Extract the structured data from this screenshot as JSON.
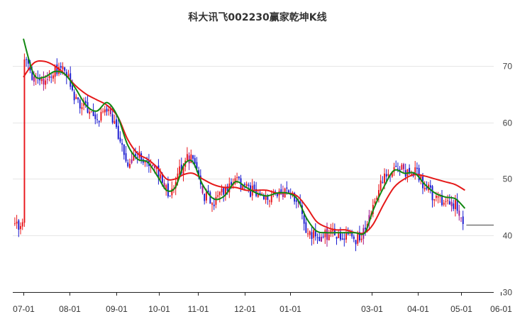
{
  "chart_data": {
    "type": "candlestick",
    "title": "科大讯飞002230赢家乾坤K线",
    "xlabel": "",
    "ylabel": "",
    "ylim": [
      30,
      75
    ],
    "grid": true,
    "y_ticks": [
      30,
      40,
      50,
      60,
      70
    ],
    "x_ticks": [
      "07-01",
      "08-01",
      "09-01",
      "10-01",
      "11-01",
      "12-01",
      "01-01",
      "03-01",
      "04-01",
      "05-01",
      "06-01"
    ],
    "last_close": 41.9,
    "colors": {
      "up": "#e8141a",
      "down": "#1a1ad0",
      "special": "#a0168c",
      "short_ma": "#118811",
      "long_ma": "#e51919",
      "grid": "#e6e6e6",
      "axis": "#222222"
    },
    "series": [
      {
        "kind": "price",
        "points": [
          [
            "07-01",
            71.0
          ],
          [
            "07-08",
            66.8
          ],
          [
            "07-15",
            67.5
          ],
          [
            "07-22",
            69.2
          ],
          [
            "07-29",
            68.8
          ],
          [
            "08-05",
            63.8
          ],
          [
            "08-12",
            62.8
          ],
          [
            "08-19",
            60.8
          ],
          [
            "08-26",
            62.5
          ],
          [
            "09-02",
            58.0
          ],
          [
            "09-09",
            53.0
          ],
          [
            "09-16",
            55.0
          ],
          [
            "09-23",
            52.5
          ],
          [
            "09-30",
            51.0
          ],
          [
            "10-07",
            47.5
          ],
          [
            "10-14",
            49.5
          ],
          [
            "10-21",
            53.5
          ],
          [
            "10-28",
            53.8
          ],
          [
            "11-04",
            47.0
          ],
          [
            "11-11",
            46.0
          ],
          [
            "11-18",
            48.5
          ],
          [
            "11-25",
            49.8
          ],
          [
            "12-02",
            48.0
          ],
          [
            "12-09",
            47.5
          ],
          [
            "12-16",
            46.5
          ],
          [
            "12-23",
            47.5
          ],
          [
            "12-30",
            47.2
          ],
          [
            "01-06",
            45.8
          ],
          [
            "01-13",
            40.5
          ],
          [
            "01-20",
            39.8
          ],
          [
            "01-27",
            40.0
          ],
          [
            "02-03",
            40.5
          ],
          [
            "02-10",
            40.2
          ],
          [
            "02-17",
            39.5
          ],
          [
            "02-24",
            40.5
          ],
          [
            "03-02",
            46.5
          ],
          [
            "03-09",
            50.0
          ],
          [
            "03-16",
            52.0
          ],
          [
            "03-23",
            51.5
          ],
          [
            "03-30",
            51.5
          ],
          [
            "04-06",
            48.5
          ],
          [
            "04-13",
            46.5
          ],
          [
            "04-20",
            46.0
          ],
          [
            "04-27",
            45.5
          ],
          [
            "05-04",
            41.9
          ]
        ]
      },
      {
        "kind": "short_ma",
        "points": [
          [
            "07-01",
            74.8
          ],
          [
            "07-08",
            68.5
          ],
          [
            "07-15",
            68.0
          ],
          [
            "07-22",
            69.0
          ],
          [
            "07-29",
            68.5
          ],
          [
            "08-05",
            66.0
          ],
          [
            "08-12",
            63.0
          ],
          [
            "08-19",
            62.0
          ],
          [
            "08-26",
            63.5
          ],
          [
            "09-02",
            61.0
          ],
          [
            "09-09",
            56.0
          ],
          [
            "09-16",
            53.5
          ],
          [
            "09-23",
            53.0
          ],
          [
            "09-30",
            50.5
          ],
          [
            "10-07",
            48.0
          ],
          [
            "10-14",
            48.5
          ],
          [
            "10-21",
            52.5
          ],
          [
            "10-28",
            53.0
          ],
          [
            "11-04",
            49.0
          ],
          [
            "11-11",
            46.5
          ],
          [
            "11-18",
            47.0
          ],
          [
            "11-25",
            49.5
          ],
          [
            "12-02",
            48.5
          ],
          [
            "12-09",
            47.5
          ],
          [
            "12-16",
            47.0
          ],
          [
            "12-23",
            47.5
          ],
          [
            "12-30",
            47.5
          ],
          [
            "01-06",
            46.5
          ],
          [
            "01-13",
            43.0
          ],
          [
            "01-20",
            40.8
          ],
          [
            "01-27",
            40.5
          ],
          [
            "02-03",
            40.5
          ],
          [
            "02-10",
            40.5
          ],
          [
            "02-17",
            40.5
          ],
          [
            "02-24",
            40.5
          ],
          [
            "03-02",
            44.5
          ],
          [
            "03-09",
            48.5
          ],
          [
            "03-16",
            51.5
          ],
          [
            "03-23",
            51.0
          ],
          [
            "03-30",
            51.0
          ],
          [
            "04-06",
            49.0
          ],
          [
            "04-13",
            47.5
          ],
          [
            "04-20",
            46.8
          ],
          [
            "04-27",
            46.5
          ],
          [
            "05-04",
            44.8
          ]
        ]
      },
      {
        "kind": "long_ma",
        "points": [
          [
            "07-01",
            68.0
          ],
          [
            "07-08",
            70.5
          ],
          [
            "07-15",
            70.8
          ],
          [
            "07-22",
            70.0
          ],
          [
            "07-29",
            68.5
          ],
          [
            "08-05",
            66.5
          ],
          [
            "08-12",
            65.0
          ],
          [
            "08-19",
            64.0
          ],
          [
            "08-26",
            63.0
          ],
          [
            "09-02",
            61.0
          ],
          [
            "09-09",
            57.0
          ],
          [
            "09-16",
            54.5
          ],
          [
            "09-23",
            53.5
          ],
          [
            "09-30",
            52.0
          ],
          [
            "10-07",
            50.0
          ],
          [
            "10-14",
            50.0
          ],
          [
            "10-21",
            50.8
          ],
          [
            "10-28",
            51.0
          ],
          [
            "11-04",
            50.0
          ],
          [
            "11-11",
            49.0
          ],
          [
            "11-18",
            48.5
          ],
          [
            "11-25",
            48.5
          ],
          [
            "12-02",
            48.0
          ],
          [
            "12-09",
            48.0
          ],
          [
            "12-16",
            48.0
          ],
          [
            "12-23",
            47.5
          ],
          [
            "12-30",
            47.5
          ],
          [
            "01-06",
            47.0
          ],
          [
            "01-13",
            45.0
          ],
          [
            "01-20",
            42.5
          ],
          [
            "01-27",
            41.5
          ],
          [
            "02-03",
            41.0
          ],
          [
            "02-10",
            41.0
          ],
          [
            "02-17",
            40.5
          ],
          [
            "02-24",
            40.5
          ],
          [
            "03-02",
            42.0
          ],
          [
            "03-09",
            45.5
          ],
          [
            "03-16",
            48.5
          ],
          [
            "03-23",
            50.0
          ],
          [
            "03-30",
            50.8
          ],
          [
            "04-06",
            50.5
          ],
          [
            "04-13",
            50.0
          ],
          [
            "04-20",
            49.5
          ],
          [
            "04-27",
            49.0
          ],
          [
            "05-04",
            48.0
          ]
        ]
      }
    ]
  }
}
